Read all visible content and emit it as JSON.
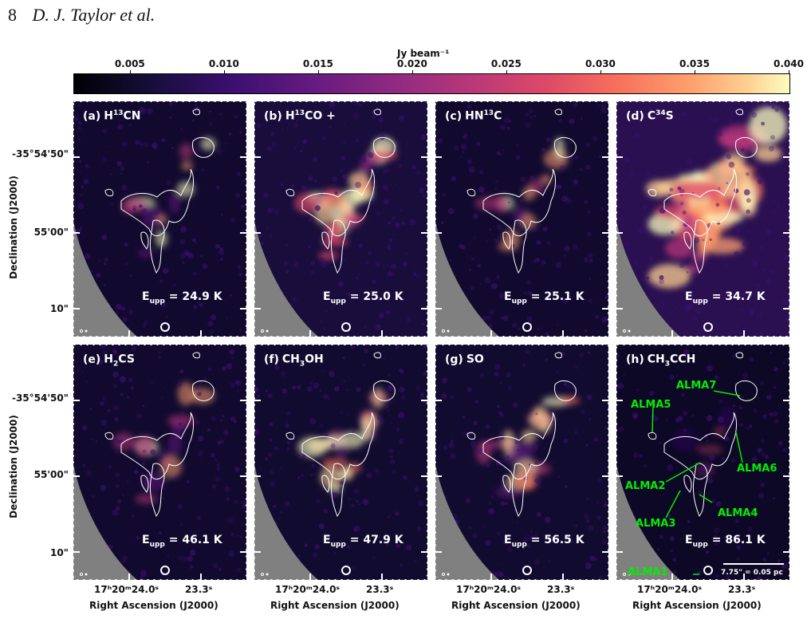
{
  "header": {
    "page_number": "8",
    "authors": "D. J. Taylor et al."
  },
  "colorbar": {
    "label": "Jy beam⁻¹",
    "ticks": [
      "0.005",
      "0.010",
      "0.015",
      "0.020",
      "0.025",
      "0.030",
      "0.035",
      "0.040"
    ],
    "colormap": [
      "#000004",
      "#140e36",
      "#3b0f70",
      "#641a80",
      "#8c2981",
      "#b73779",
      "#de4968",
      "#f7705c",
      "#fe9f6d",
      "#fecf92",
      "#fcfdbf"
    ]
  },
  "y_axis": {
    "title": "Declination (J2000)",
    "ticks": [
      "-35°54'50\"",
      "55'00\"",
      "10\""
    ]
  },
  "x_axis": {
    "title": "Right Ascension (J2000)",
    "ticks": [
      "17ʰ20ᵐ24.0ˢ",
      "23.3ˢ"
    ]
  },
  "panels": [
    {
      "tag": "(a)",
      "species": "H",
      "sup": "13",
      "species2": "CN",
      "sub": "",
      "species3": "",
      "eupp": "24.9 K",
      "intensity": "low"
    },
    {
      "tag": "(b)",
      "species": "H",
      "sup": "13",
      "species2": "CO +",
      "sub": "",
      "species3": "",
      "eupp": "25.0 K",
      "intensity": "high"
    },
    {
      "tag": "(c)",
      "species": "HN",
      "sup": "13",
      "species2": "C",
      "sub": "",
      "species3": "",
      "eupp": "25.1 K",
      "intensity": "low"
    },
    {
      "tag": "(d)",
      "species": "C",
      "sup": "34",
      "species2": "S",
      "sub": "",
      "species3": "",
      "eupp": "34.7 K",
      "intensity": "very-high"
    },
    {
      "tag": "(e)",
      "species": "H",
      "sup": "",
      "species2": "",
      "sub": "2",
      "species3": "CS",
      "eupp": "46.1 K",
      "intensity": "low"
    },
    {
      "tag": "(f)",
      "species": "CH",
      "sup": "",
      "species2": "",
      "sub": "3",
      "species3": "OH",
      "eupp": "47.9 K",
      "intensity": "medium"
    },
    {
      "tag": "(g)",
      "species": "SO",
      "sup": "",
      "species2": "",
      "sub": "",
      "species3": "",
      "eupp": "56.5 K",
      "intensity": "medium"
    },
    {
      "tag": "(h)",
      "species": "CH",
      "sup": "",
      "species2": "",
      "sub": "3",
      "species3": "CCH",
      "eupp": "86.1 K",
      "intensity": "very-low"
    }
  ],
  "eupp_prefix": "E",
  "eupp_sub": "upp",
  "annotations": [
    "ALMA7",
    "ALMA5",
    "ALMA6",
    "ALMA2",
    "ALMA4",
    "ALMA3",
    "ALMA1"
  ],
  "scalebar_label": "7.75\" = 0.05 pc"
}
